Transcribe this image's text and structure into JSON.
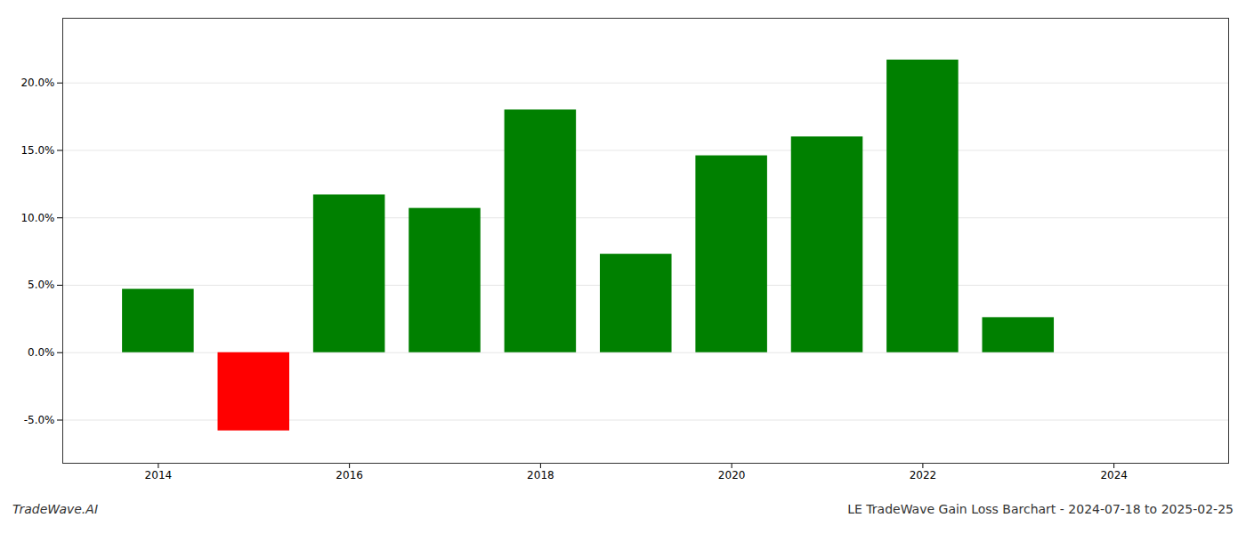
{
  "chart_data": {
    "type": "bar",
    "title": "LE TradeWave Gain Loss Barchart - 2024-07-18 to 2025-02-25",
    "annotations": [
      "TradeWave.AI"
    ],
    "x": [
      2014,
      2015,
      2016,
      2017,
      2018,
      2019,
      2020,
      2021,
      2022,
      2023
    ],
    "values": [
      0.047,
      -0.058,
      0.117,
      0.107,
      0.18,
      0.073,
      0.146,
      0.16,
      0.217,
      0.026
    ],
    "colors": [
      "#008000",
      "#ff0000",
      "#008000",
      "#008000",
      "#008000",
      "#008000",
      "#008000",
      "#008000",
      "#008000",
      "#008000"
    ],
    "xlim": [
      2013.0,
      2025.2
    ],
    "xticks": [
      2014,
      2016,
      2018,
      2020,
      2022,
      2024
    ],
    "ylim": [
      -0.082,
      0.248
    ],
    "yticks": [
      {
        "value": -0.05,
        "label": "-5.0%"
      },
      {
        "value": 0.0,
        "label": "0.0%"
      },
      {
        "value": 0.05,
        "label": "5.0%"
      },
      {
        "value": 0.1,
        "label": "10.0%"
      },
      {
        "value": 0.15,
        "label": "15.0%"
      },
      {
        "value": 0.2,
        "label": "20.0%"
      }
    ],
    "grid": true
  }
}
